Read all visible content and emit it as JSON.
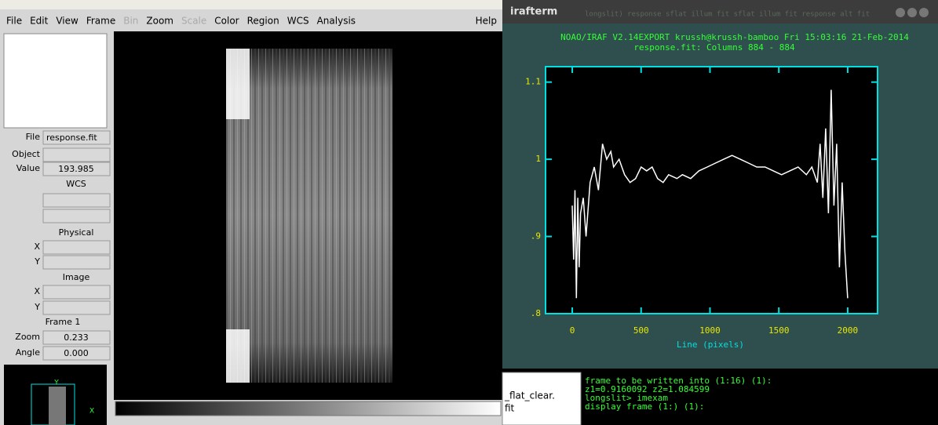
{
  "ds9": {
    "menu": [
      "File",
      "Edit",
      "View",
      "Frame",
      "Bin",
      "Zoom",
      "Scale",
      "Color",
      "Region",
      "WCS",
      "Analysis"
    ],
    "help": "Help",
    "panel": {
      "file_label": "File",
      "file": "response.fit",
      "object_label": "Object",
      "value_label": "Value",
      "value": "193.985",
      "wcs": "WCS",
      "physical": "Physical",
      "physical_x": "X",
      "physical_y": "Y",
      "image": "Image",
      "image_x": "X",
      "image_y": "Y",
      "frame": "Frame 1",
      "zoom_label": "Zoom",
      "zoom": "0.233",
      "angle_label": "Angle",
      "angle": "0.000"
    },
    "thumb_y": "Y",
    "thumb_x": "X"
  },
  "irafterm": {
    "title": "irafterm",
    "window_title": "longslit) response sflat illum fit sflat illum fit response alt fit",
    "header": [
      "NOAO/IRAF V2.14EXPORT krussh@krussh-bamboo Fri 15:03:16 21-Feb-2014",
      "response.fit: Columns 884 - 884"
    ],
    "plot": {
      "type": "line",
      "x_label": "Line (pixels)",
      "xlim": [
        -194,
        2217
      ],
      "ylim": [
        0.8,
        1.12
      ],
      "xticks": [
        0,
        500,
        1000,
        1500,
        2000
      ],
      "yticks": [
        {
          "value": 0.8,
          "label": ".8"
        },
        {
          "value": 0.9,
          "label": ".9"
        },
        1,
        1.1
      ],
      "color": "#ffffff",
      "x": [
        0,
        10,
        20,
        30,
        40,
        50,
        60,
        80,
        100,
        130,
        160,
        190,
        220,
        250,
        280,
        300,
        340,
        380,
        420,
        460,
        500,
        540,
        580,
        620,
        660,
        700,
        760,
        800,
        860,
        920,
        980,
        1040,
        1100,
        1160,
        1220,
        1280,
        1340,
        1400,
        1460,
        1520,
        1580,
        1640,
        1700,
        1740,
        1780,
        1800,
        1820,
        1840,
        1860,
        1880,
        1900,
        1920,
        1940,
        1960,
        1980,
        2000
      ],
      "values": [
        0.94,
        0.87,
        0.96,
        0.82,
        0.95,
        0.86,
        0.93,
        0.95,
        0.9,
        0.97,
        0.99,
        0.96,
        1.02,
        1.0,
        1.01,
        0.99,
        1.0,
        0.98,
        0.97,
        0.975,
        0.99,
        0.985,
        0.99,
        0.975,
        0.97,
        0.98,
        0.975,
        0.98,
        0.975,
        0.985,
        0.99,
        0.995,
        1.0,
        1.005,
        1.0,
        0.995,
        0.99,
        0.99,
        0.985,
        0.98,
        0.985,
        0.99,
        0.98,
        0.99,
        0.97,
        1.02,
        0.95,
        1.04,
        0.93,
        1.09,
        0.94,
        1.02,
        0.86,
        0.97,
        0.88,
        0.82
      ]
    }
  },
  "terminal": [
    "frame to be written into (1:16) (1):",
    "z1=0.9160092 z2=1.084599",
    "longslit> imexam",
    "display frame (1:) (1):"
  ],
  "side_window": [
    "_flat_clear.",
    "fit"
  ]
}
